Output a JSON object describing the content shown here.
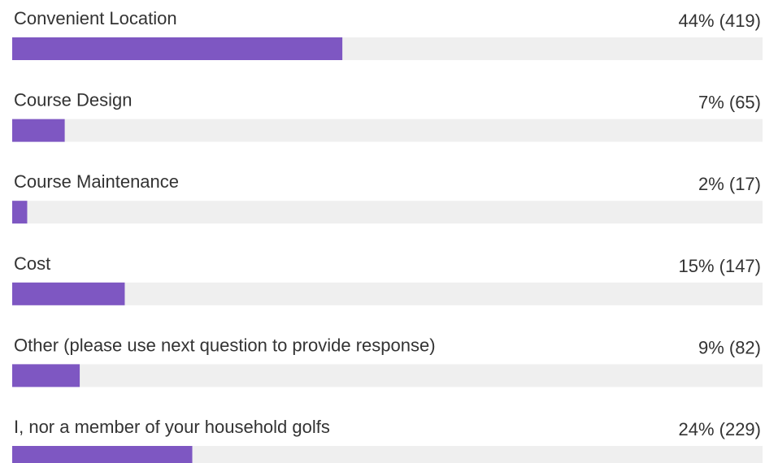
{
  "chart_data": {
    "type": "bar",
    "orientation": "horizontal",
    "categories": [
      "Convenient Location",
      "Course Design",
      "Course Maintenance",
      "Cost",
      "Other (please use next question to provide response)",
      "I, nor a member of your household golfs"
    ],
    "values": [
      44,
      7,
      2,
      15,
      9,
      24
    ],
    "value_labels": [
      "44% (419)",
      "7% (65)",
      "2% (17)",
      "15% (147)",
      "9% (82)",
      "24% (229)"
    ],
    "xlim": [
      0,
      100
    ],
    "color": "#7e57c2",
    "track_color": "#efefef"
  }
}
